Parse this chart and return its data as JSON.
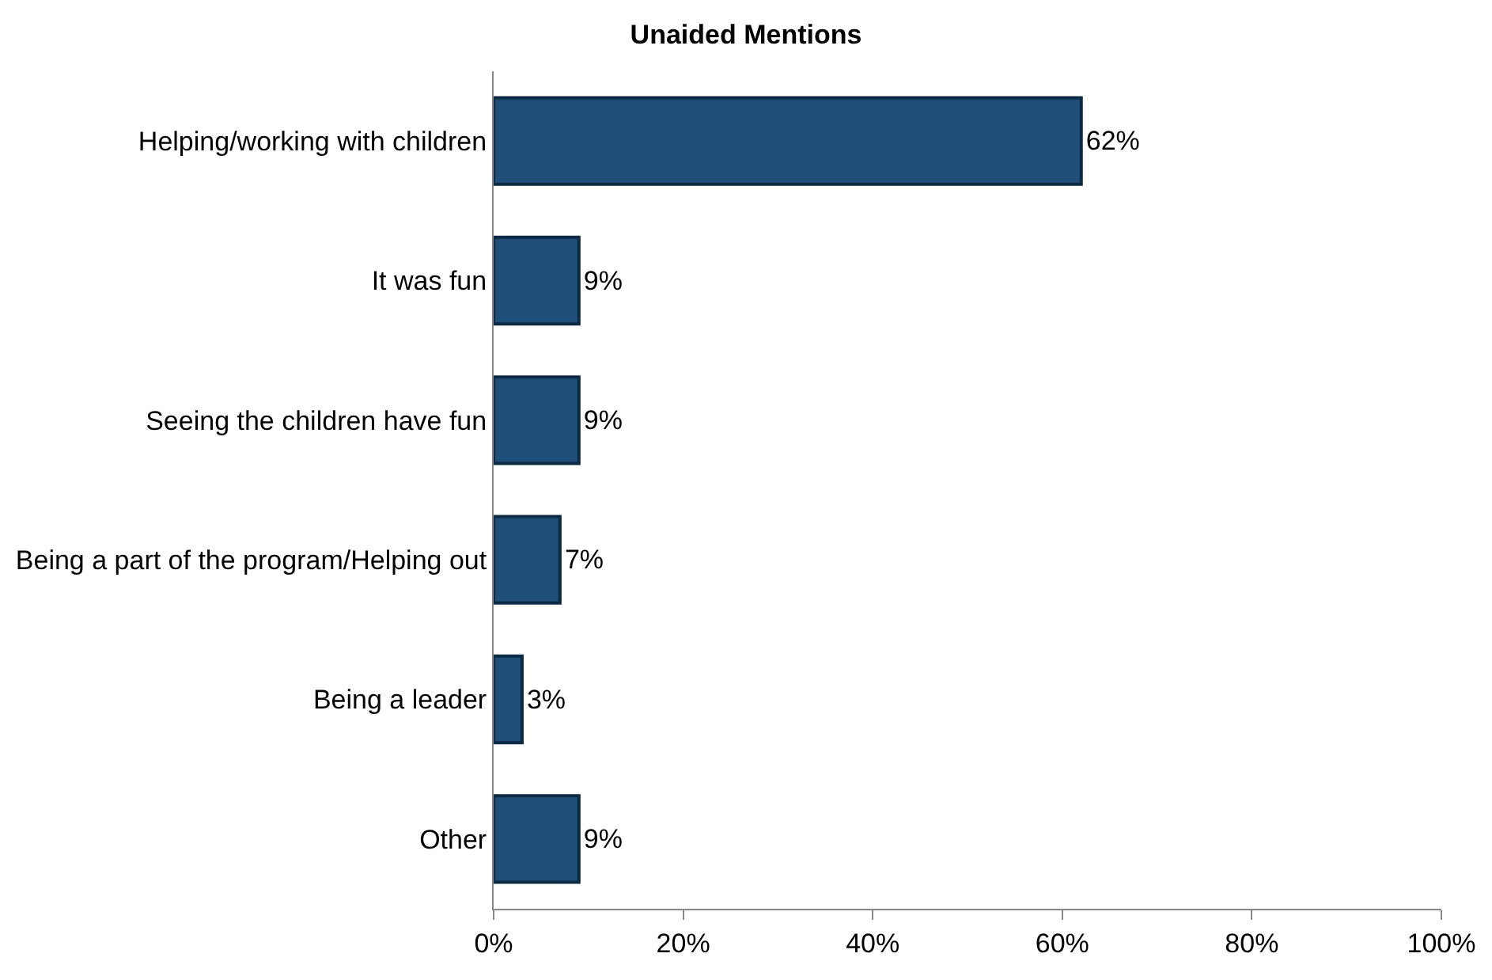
{
  "chart_data": {
    "type": "bar",
    "orientation": "horizontal",
    "title": "Unaided Mentions",
    "categories": [
      "Helping/working with children",
      "It was fun",
      "Seeing the children have fun",
      "Being a part of the program/Helping out",
      "Being a leader",
      "Other"
    ],
    "values": [
      62,
      9,
      9,
      7,
      3,
      9
    ],
    "color": "#1f4e79",
    "value_labels": [
      "62%",
      "9%",
      "9%",
      "7%",
      "3%",
      "9%"
    ],
    "xlim": [
      0,
      100
    ],
    "xticks": [
      {
        "value": 0,
        "label": "0%"
      },
      {
        "value": 20,
        "label": "20%"
      },
      {
        "value": 40,
        "label": "40%"
      },
      {
        "value": 60,
        "label": "60%"
      },
      {
        "value": 80,
        "label": "80%"
      },
      {
        "value": 100,
        "label": "100%"
      }
    ],
    "legend": false
  }
}
